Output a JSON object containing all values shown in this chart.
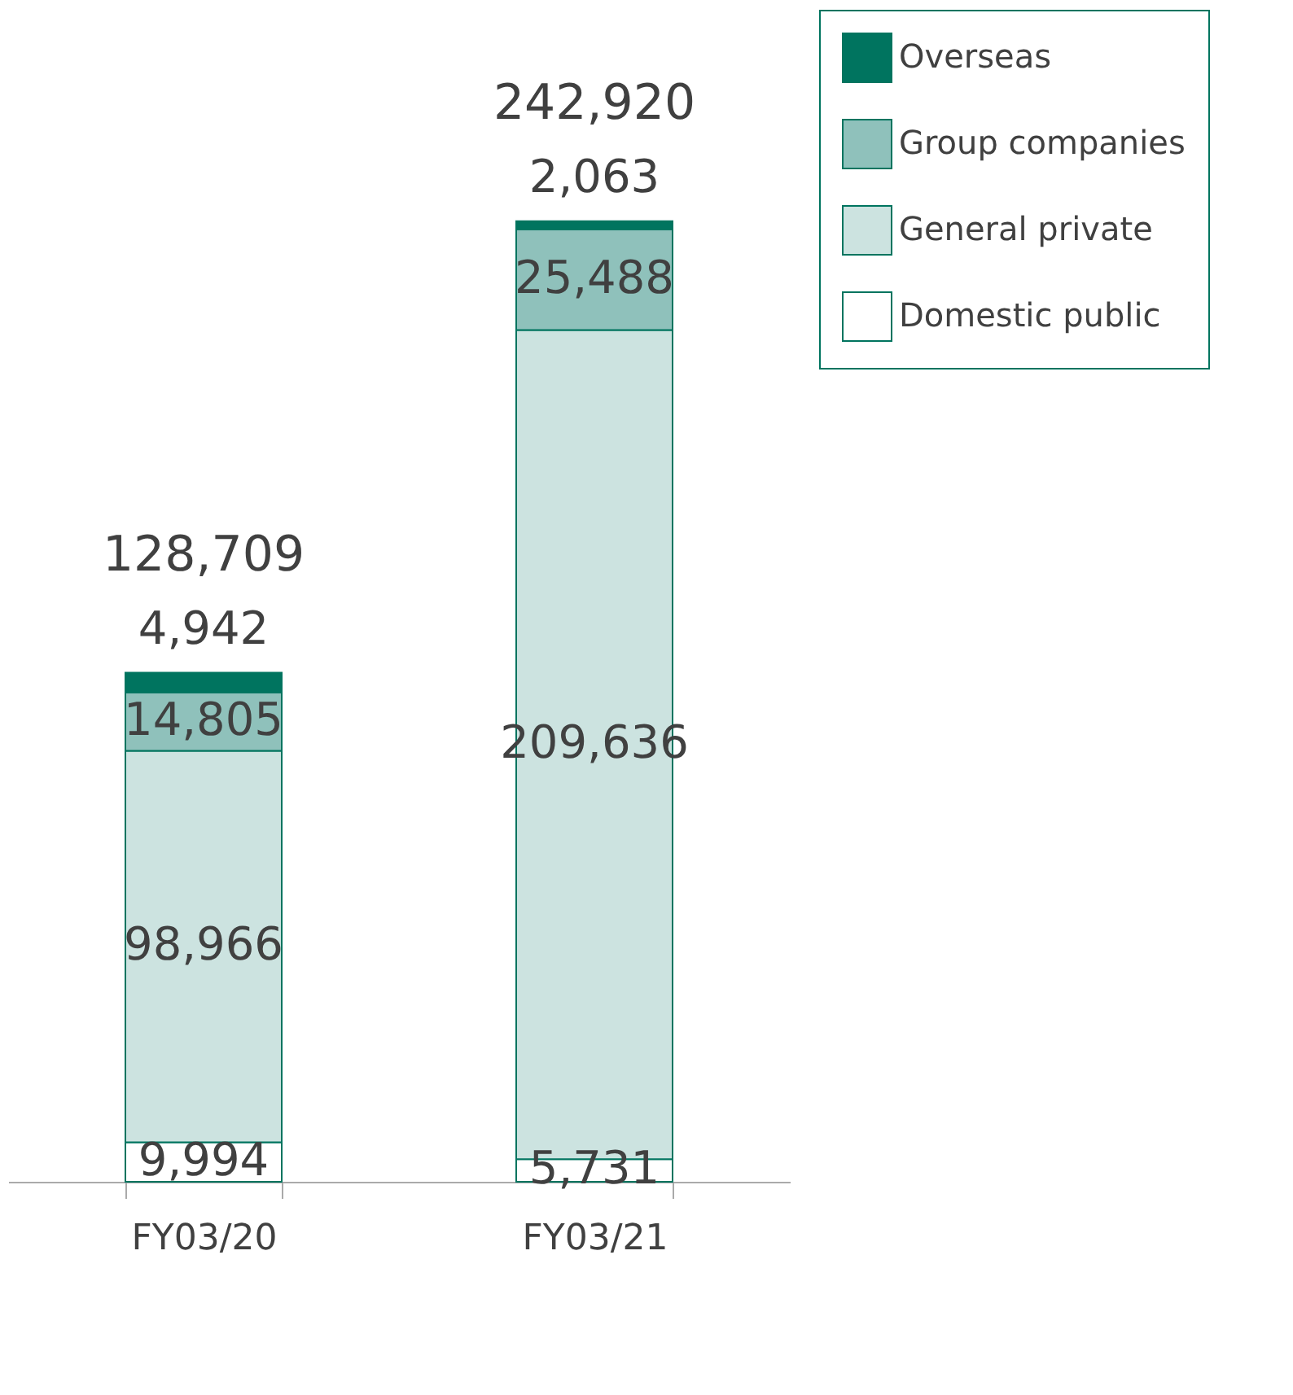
{
  "chart_data": {
    "type": "bar",
    "stacked": true,
    "categories": [
      "FY03/20",
      "FY03/21"
    ],
    "series": [
      {
        "name": "Domestic public",
        "color": "#ffffff",
        "values": [
          9994,
          5731
        ],
        "value_labels": [
          "9,994",
          "5,731"
        ]
      },
      {
        "name": "General private",
        "color": "#cce3e0",
        "values": [
          98966,
          209636
        ],
        "value_labels": [
          "98,966",
          "209,636"
        ]
      },
      {
        "name": "Group companies",
        "color": "#8fc1bb",
        "values": [
          14805,
          25488
        ],
        "value_labels": [
          "14,805",
          "25,488"
        ]
      },
      {
        "name": "Overseas",
        "color": "#00745f",
        "values": [
          4942,
          2063
        ],
        "value_labels": [
          "4,942",
          "2,063"
        ]
      }
    ],
    "totals": [
      "128,709",
      "242,920"
    ],
    "legend": "right",
    "grid": false
  }
}
